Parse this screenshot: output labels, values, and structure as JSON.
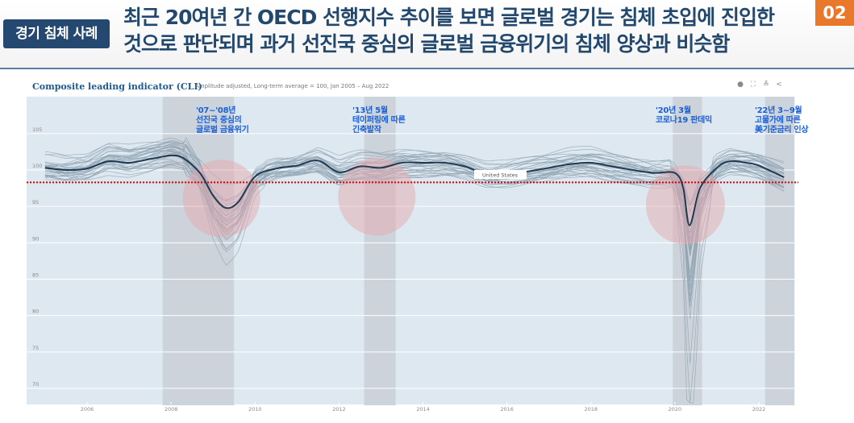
{
  "header": {
    "badge": "경기 침체 사례",
    "title_line1": "최근 20여년 간 OECD 선행지수 추이를 보면 글로벌 경기는 침체 초입에 진입한",
    "title_line2": "것으로 판단되며 과거 선진국 중심의 글로벌 금융위기의 침체 양상과 비슷함",
    "page_number": "02"
  },
  "colors": {
    "badge_bg": "#24486f",
    "title": "#23486e",
    "page_number_bg": "#e8792c",
    "plot_bg": "#dde8f0",
    "us_line": "#1f3a52",
    "other_lines": "#8fa3b1",
    "threshold": "#e00000",
    "shade": "#cdd3da",
    "circle": "#e6a9b0",
    "annotation": "#1a5fd6"
  },
  "toolbar": {
    "icons": [
      "info-icon",
      "fullscreen-icon",
      "download-icon",
      "share-icon"
    ],
    "glyphs": [
      "●",
      "⛶",
      "≚",
      "<"
    ]
  },
  "chart_data": {
    "type": "line",
    "title": "Composite leading indicator (CLI)",
    "subtitle": "Amplitude adjusted, Long-term average = 100, Jan 2005 – Aug 2022",
    "xlabel": "",
    "ylabel": "",
    "xlim": [
      2004.5,
      2023.0
    ],
    "ylim": [
      67.5,
      109
    ],
    "yticks": [
      70,
      75,
      80,
      85,
      90,
      95,
      100,
      105
    ],
    "xticks": [
      2006,
      2008,
      2010,
      2012,
      2014,
      2016,
      2018,
      2020,
      2022
    ],
    "grid": true,
    "threshold_line": 98.3,
    "series": [
      {
        "name": "United States",
        "highlight": true,
        "x": [
          2005.0,
          2005.5,
          2006.0,
          2006.5,
          2007.0,
          2007.5,
          2008.0,
          2008.3,
          2008.7,
          2009.0,
          2009.3,
          2009.6,
          2010.0,
          2010.5,
          2011.0,
          2011.5,
          2012.0,
          2012.5,
          2013.0,
          2013.5,
          2014.0,
          2014.5,
          2015.0,
          2015.5,
          2016.0,
          2016.5,
          2017.0,
          2017.5,
          2018.0,
          2018.5,
          2019.0,
          2019.5,
          2020.0,
          2020.2,
          2020.35,
          2020.6,
          2021.0,
          2021.3,
          2021.7,
          2022.0,
          2022.6
        ],
        "values": [
          100.3,
          100.0,
          100.2,
          101.2,
          101.0,
          101.5,
          102.0,
          101.6,
          99.5,
          96.5,
          94.8,
          95.6,
          99.1,
          100.2,
          100.6,
          101.3,
          99.7,
          100.5,
          100.3,
          101.0,
          101.0,
          101.0,
          100.5,
          99.4,
          99.4,
          99.8,
          100.3,
          100.8,
          101.0,
          100.5,
          100.0,
          99.6,
          99.6,
          97.5,
          92.4,
          97.5,
          100.3,
          101.2,
          101.0,
          100.6,
          99.0
        ]
      }
    ],
    "other_countries_note": "",
    "shaded_periods": [
      {
        "start": 2007.8,
        "end": 2009.5
      },
      {
        "start": 2012.6,
        "end": 2013.35
      },
      {
        "start": 2019.95,
        "end": 2020.65
      },
      {
        "start": 2022.15,
        "end": 2022.85
      }
    ],
    "highlight_circles": [
      {
        "x": 2009.2,
        "y": 96.1
      },
      {
        "x": 2012.9,
        "y": 96.3
      },
      {
        "x": 2020.25,
        "y": 95.2
      }
    ],
    "annotations": [
      {
        "lines": [
          "'07~'08년",
          "선진국 중심의",
          "글로벌 금융위기"
        ]
      },
      {
        "lines": [
          "'13년 5월",
          "테이퍼링에 따른",
          "긴축발작"
        ]
      },
      {
        "lines": [
          "'20년 3월",
          "코로나19 판데믹"
        ]
      },
      {
        "lines": [
          "'22년 3~9월",
          "고물가에 따른",
          "美기준금리 인상"
        ]
      }
    ],
    "series_label": "United States"
  }
}
